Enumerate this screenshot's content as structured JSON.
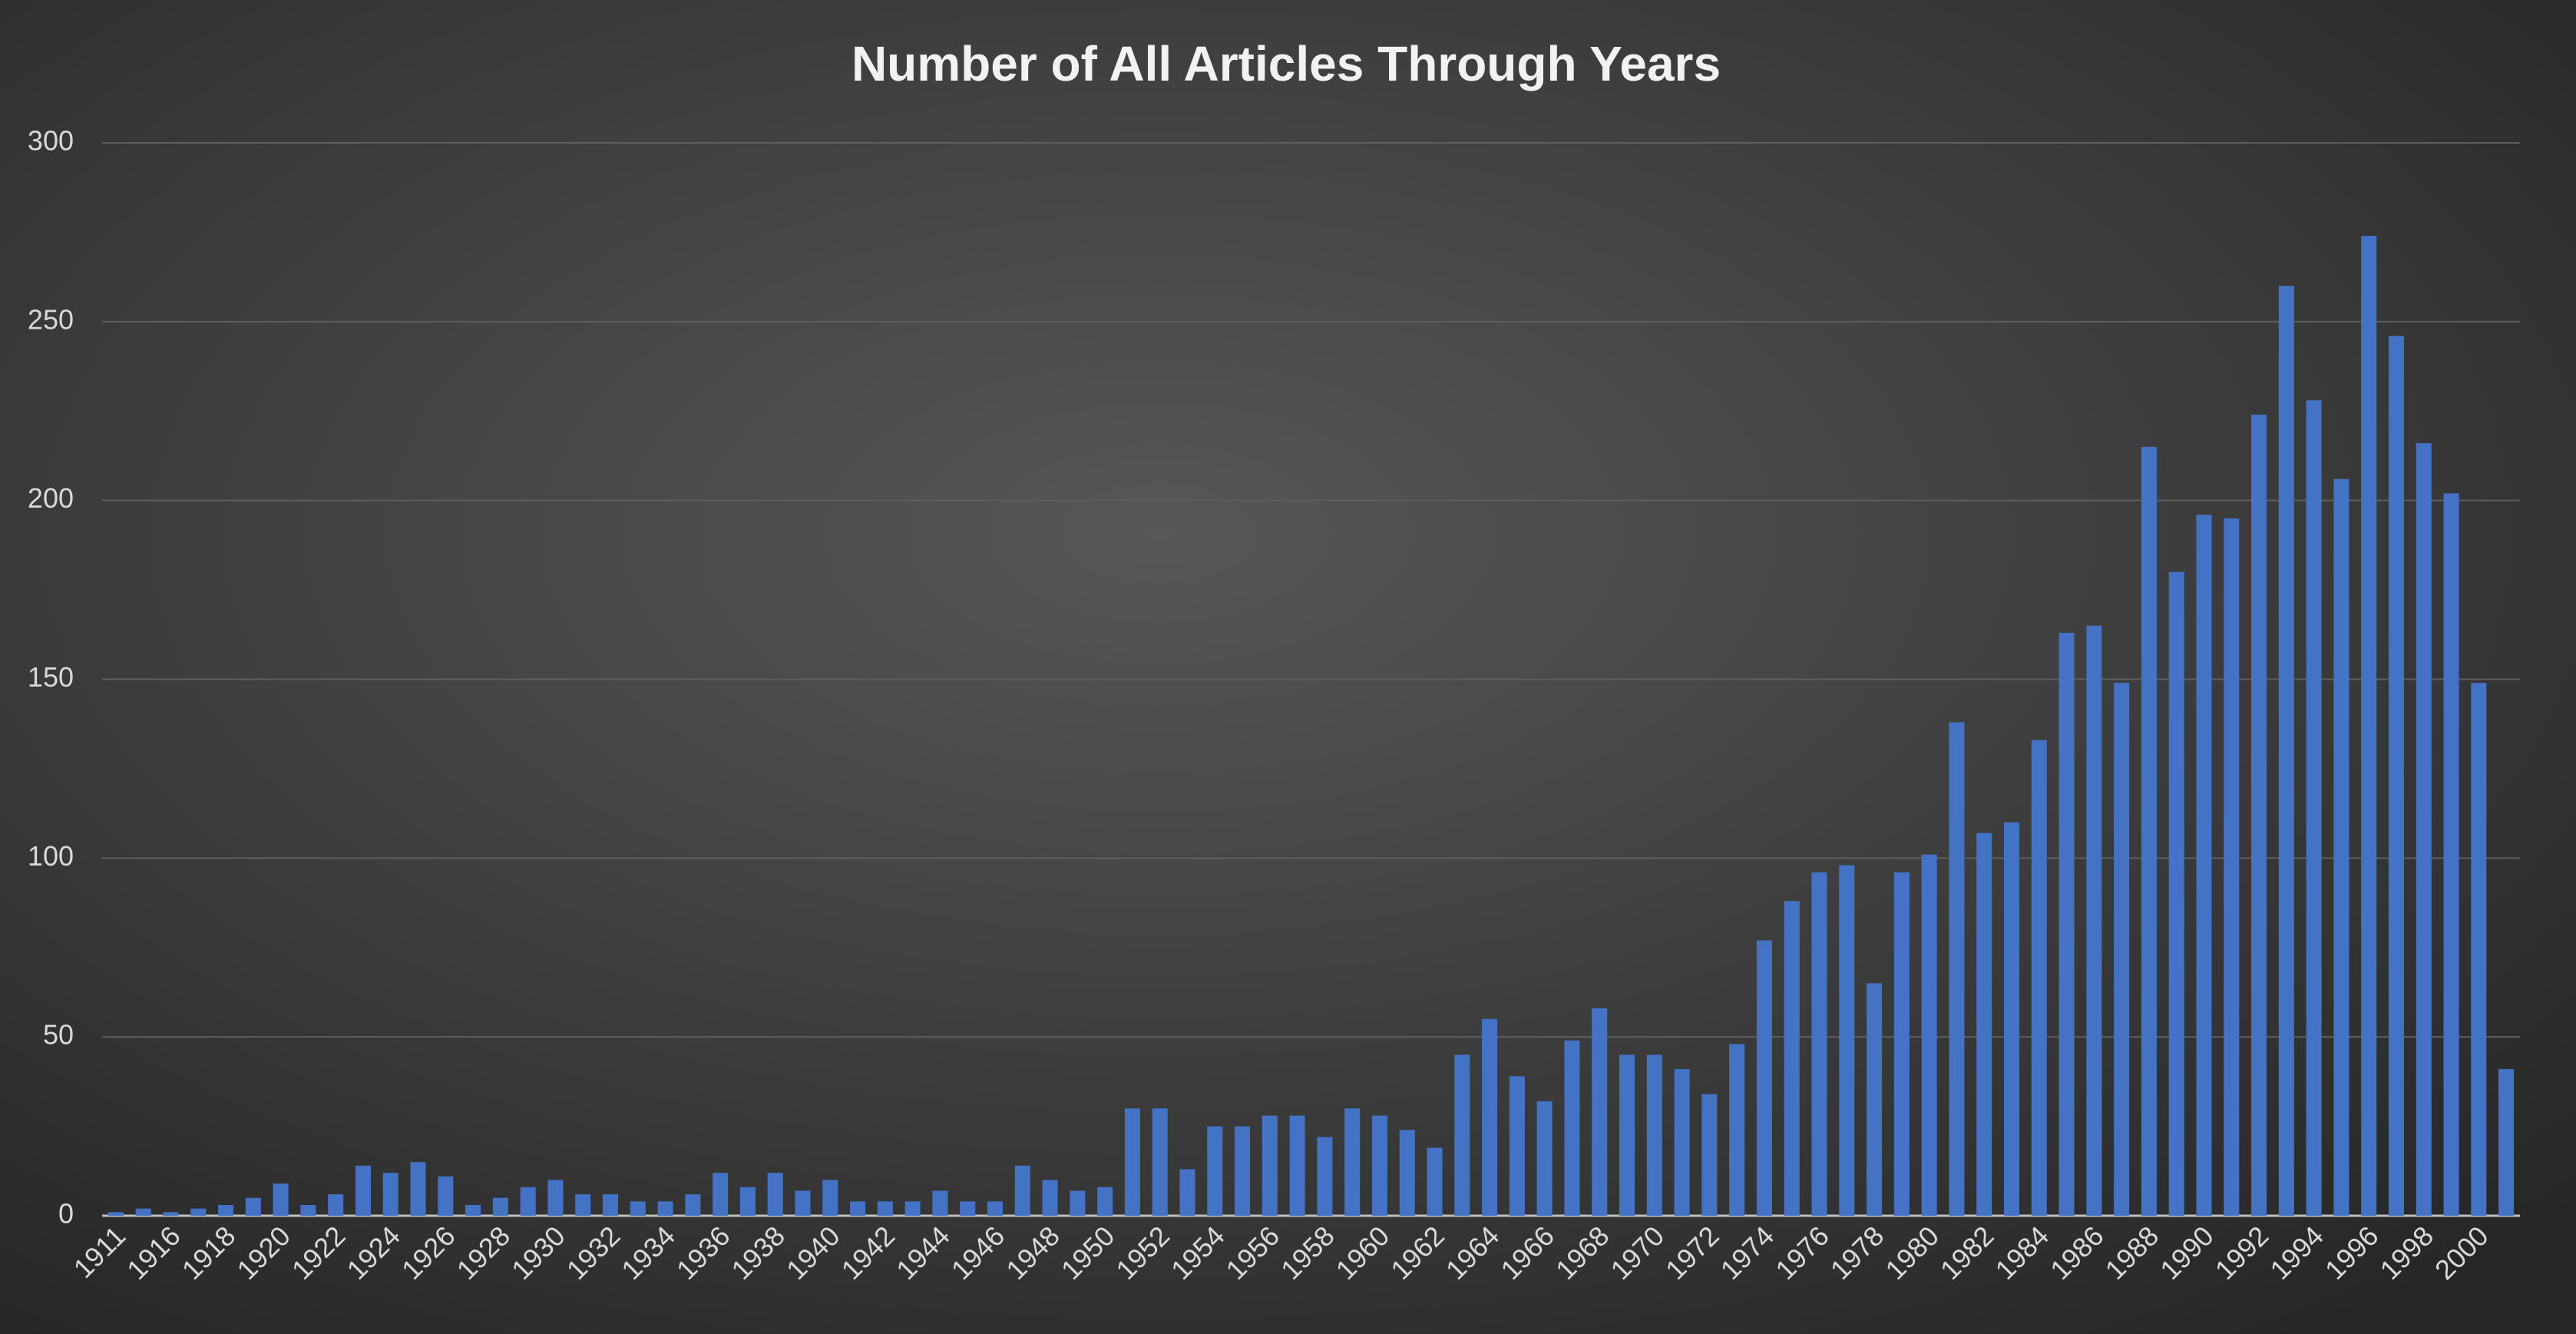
{
  "chart_data": {
    "type": "bar",
    "title": "Number of All Articles Through Years",
    "categories": [
      "1911",
      null,
      "1916",
      null,
      "1918",
      null,
      "1920",
      null,
      "1922",
      null,
      "1924",
      null,
      "1926",
      null,
      "1928",
      null,
      "1930",
      null,
      "1932",
      null,
      "1934",
      null,
      "1936",
      null,
      "1938",
      null,
      "1940",
      null,
      "1942",
      null,
      "1944",
      null,
      "1946",
      null,
      "1948",
      null,
      "1950",
      null,
      "1952",
      null,
      "1954",
      null,
      "1956",
      null,
      "1958",
      null,
      "1960",
      null,
      "1962",
      null,
      "1964",
      null,
      "1966",
      null,
      "1968",
      null,
      "1970",
      null,
      "1972",
      null,
      "1974",
      null,
      "1976",
      null,
      "1978",
      null,
      "1980",
      null,
      "1982",
      null,
      "1984",
      null,
      "1986",
      null,
      "1988",
      null,
      "1990",
      null,
      "1992",
      null,
      "1994",
      null,
      "1996",
      null,
      "1998",
      null,
      "2000",
      null
    ],
    "values": [
      1,
      2,
      1,
      2,
      3,
      5,
      9,
      3,
      6,
      14,
      12,
      15,
      11,
      3,
      5,
      8,
      10,
      6,
      6,
      4,
      4,
      6,
      12,
      8,
      12,
      7,
      10,
      4,
      4,
      4,
      7,
      4,
      4,
      14,
      10,
      7,
      8,
      30,
      30,
      13,
      25,
      25,
      28,
      28,
      22,
      30,
      28,
      24,
      19,
      45,
      55,
      39,
      32,
      49,
      58,
      45,
      45,
      41,
      34,
      48,
      77,
      88,
      96,
      98,
      65,
      96,
      101,
      138,
      107,
      110,
      133,
      163,
      165,
      149,
      215,
      180,
      196,
      195,
      224,
      260,
      228,
      206,
      274,
      246,
      216,
      202,
      149,
      41
    ],
    "color": "#4472c4",
    "ylim": [
      0,
      300
    ],
    "yticks": [
      0,
      50,
      100,
      150,
      200,
      250,
      300
    ],
    "grid": true
  }
}
